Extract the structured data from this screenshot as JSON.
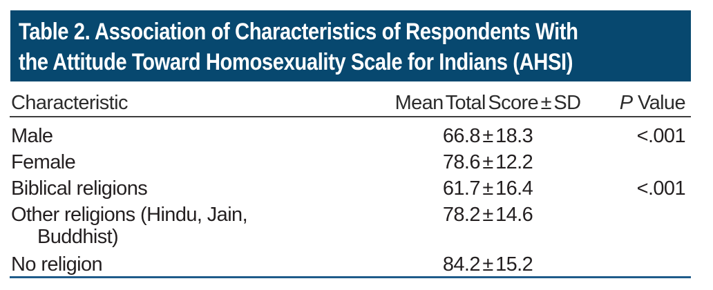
{
  "table": {
    "title_lines": [
      "Table 2. Association of Characteristics of Respondents With",
      "the Attitude Toward Homosexuality Scale for Indians (AHSI)"
    ],
    "columns": {
      "characteristic": "Characteristic",
      "mean": "Mean Total Score ± SD",
      "p": "P Value"
    },
    "rows": [
      {
        "characteristic": "Male",
        "mean": "66.8 ± 18.3",
        "p": "<.001"
      },
      {
        "characteristic": "Female",
        "mean": "78.6 ± 12.2",
        "p": ""
      },
      {
        "characteristic": "Biblical religions",
        "mean": "61.7 ± 16.4",
        "p": "<.001"
      },
      {
        "characteristic": "Other religions (Hindu, Jain,",
        "characteristic_line2": "Buddhist)",
        "mean": "78.2 ± 14.6",
        "p": ""
      },
      {
        "characteristic": "No religion",
        "mean": "84.2 ± 15.2",
        "p": ""
      }
    ],
    "colors": {
      "banner_blue": "#07486F",
      "bottom_rule_blue": "#1E5B8A",
      "header_rule_gray": "#3C3C3C",
      "text": "#231F20"
    }
  }
}
